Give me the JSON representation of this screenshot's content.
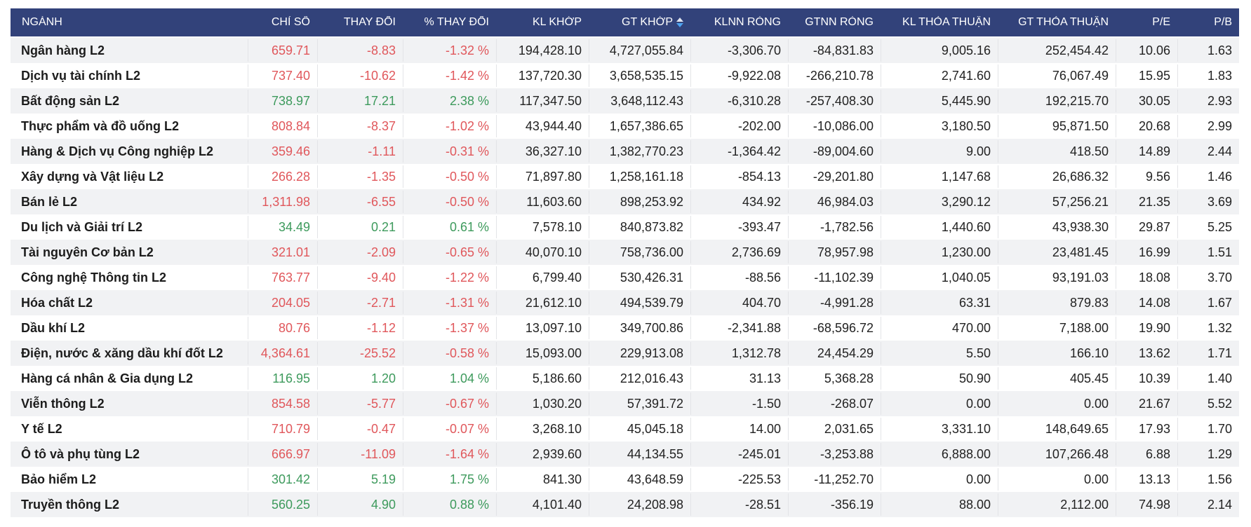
{
  "colors": {
    "header_bg": "#32427a",
    "up": "#3d9a5c",
    "down": "#e0575b",
    "alt_row": "#f1f2f4"
  },
  "headers": [
    "NGÀNH",
    "CHỈ SỐ",
    "THAY ĐỔI",
    "% THAY ĐỔI",
    "KL KHỚP",
    "GT KHỚP",
    "KLNN RÒNG",
    "GTNN RÒNG",
    "KL THỎA THUẬN",
    "GT THỎA THUẬN",
    "P/E",
    "P/B"
  ],
  "sort": {
    "column": "GT KHỚP",
    "direction": "desc",
    "icon": "sort-desc-icon"
  },
  "rows": [
    {
      "name": "Ngân hàng L2",
      "index": "659.71",
      "change": "-8.83",
      "pct": "-1.32 %",
      "dir": "down",
      "kl_khop": "194,428.10",
      "gt_khop": "4,727,055.84",
      "klnn": "-3,306.70",
      "gtnn": "-84,831.83",
      "kl_tt": "9,005.16",
      "gt_tt": "252,454.42",
      "pe": "10.06",
      "pb": "1.63"
    },
    {
      "name": "Dịch vụ tài chính L2",
      "index": "737.40",
      "change": "-10.62",
      "pct": "-1.42 %",
      "dir": "down",
      "kl_khop": "137,720.30",
      "gt_khop": "3,658,535.15",
      "klnn": "-9,922.08",
      "gtnn": "-266,210.78",
      "kl_tt": "2,741.60",
      "gt_tt": "76,067.49",
      "pe": "15.95",
      "pb": "1.83"
    },
    {
      "name": "Bất động sản L2",
      "index": "738.97",
      "change": "17.21",
      "pct": "2.38 %",
      "dir": "up",
      "kl_khop": "117,347.50",
      "gt_khop": "3,648,112.43",
      "klnn": "-6,310.28",
      "gtnn": "-257,408.30",
      "kl_tt": "5,445.90",
      "gt_tt": "192,215.70",
      "pe": "30.05",
      "pb": "2.93"
    },
    {
      "name": "Thực phẩm và đồ uống L2",
      "index": "808.84",
      "change": "-8.37",
      "pct": "-1.02 %",
      "dir": "down",
      "kl_khop": "43,944.40",
      "gt_khop": "1,657,386.65",
      "klnn": "-202.00",
      "gtnn": "-10,086.00",
      "kl_tt": "3,180.50",
      "gt_tt": "95,871.50",
      "pe": "20.68",
      "pb": "2.99"
    },
    {
      "name": "Hàng & Dịch vụ Công nghiệp L2",
      "index": "359.46",
      "change": "-1.11",
      "pct": "-0.31 %",
      "dir": "down",
      "kl_khop": "36,327.10",
      "gt_khop": "1,382,770.23",
      "klnn": "-1,364.42",
      "gtnn": "-89,004.60",
      "kl_tt": "9.00",
      "gt_tt": "418.50",
      "pe": "14.89",
      "pb": "2.44"
    },
    {
      "name": "Xây dựng và Vật liệu L2",
      "index": "266.28",
      "change": "-1.35",
      "pct": "-0.50 %",
      "dir": "down",
      "kl_khop": "71,897.80",
      "gt_khop": "1,258,161.18",
      "klnn": "-854.13",
      "gtnn": "-29,201.80",
      "kl_tt": "1,147.68",
      "gt_tt": "26,686.32",
      "pe": "9.56",
      "pb": "1.46"
    },
    {
      "name": "Bán lẻ L2",
      "index": "1,311.98",
      "change": "-6.55",
      "pct": "-0.50 %",
      "dir": "down",
      "kl_khop": "11,603.60",
      "gt_khop": "898,253.92",
      "klnn": "434.92",
      "gtnn": "46,984.03",
      "kl_tt": "3,290.12",
      "gt_tt": "57,256.21",
      "pe": "21.35",
      "pb": "3.69"
    },
    {
      "name": "Du lịch và Giải trí L2",
      "index": "34.49",
      "change": "0.21",
      "pct": "0.61 %",
      "dir": "up",
      "kl_khop": "7,578.10",
      "gt_khop": "840,873.82",
      "klnn": "-393.47",
      "gtnn": "-1,782.56",
      "kl_tt": "1,440.60",
      "gt_tt": "43,938.30",
      "pe": "29.87",
      "pb": "5.25"
    },
    {
      "name": "Tài nguyên Cơ bản L2",
      "index": "321.01",
      "change": "-2.09",
      "pct": "-0.65 %",
      "dir": "down",
      "kl_khop": "40,070.10",
      "gt_khop": "758,736.00",
      "klnn": "2,736.69",
      "gtnn": "78,957.98",
      "kl_tt": "1,230.00",
      "gt_tt": "23,481.45",
      "pe": "16.99",
      "pb": "1.51"
    },
    {
      "name": "Công nghệ Thông tin L2",
      "index": "763.77",
      "change": "-9.40",
      "pct": "-1.22 %",
      "dir": "down",
      "kl_khop": "6,799.40",
      "gt_khop": "530,426.31",
      "klnn": "-88.56",
      "gtnn": "-11,102.39",
      "kl_tt": "1,040.05",
      "gt_tt": "93,191.03",
      "pe": "18.08",
      "pb": "3.70"
    },
    {
      "name": "Hóa chất L2",
      "index": "204.05",
      "change": "-2.71",
      "pct": "-1.31 %",
      "dir": "down",
      "kl_khop": "21,612.10",
      "gt_khop": "494,539.79",
      "klnn": "404.70",
      "gtnn": "-4,991.28",
      "kl_tt": "63.31",
      "gt_tt": "879.83",
      "pe": "14.08",
      "pb": "1.67"
    },
    {
      "name": "Dầu khí L2",
      "index": "80.76",
      "change": "-1.12",
      "pct": "-1.37 %",
      "dir": "down",
      "kl_khop": "13,097.10",
      "gt_khop": "349,700.86",
      "klnn": "-2,341.88",
      "gtnn": "-68,596.72",
      "kl_tt": "470.00",
      "gt_tt": "7,188.00",
      "pe": "19.90",
      "pb": "1.32"
    },
    {
      "name": "Điện, nước & xăng dầu khí đốt L2",
      "index": "4,364.61",
      "change": "-25.52",
      "pct": "-0.58 %",
      "dir": "down",
      "kl_khop": "15,093.00",
      "gt_khop": "229,913.08",
      "klnn": "1,312.78",
      "gtnn": "24,454.29",
      "kl_tt": "5.50",
      "gt_tt": "166.10",
      "pe": "13.62",
      "pb": "1.71"
    },
    {
      "name": "Hàng cá nhân & Gia dụng L2",
      "index": "116.95",
      "change": "1.20",
      "pct": "1.04 %",
      "dir": "up",
      "kl_khop": "5,186.60",
      "gt_khop": "212,016.43",
      "klnn": "31.13",
      "gtnn": "5,368.28",
      "kl_tt": "50.90",
      "gt_tt": "405.45",
      "pe": "10.39",
      "pb": "1.40"
    },
    {
      "name": "Viễn thông L2",
      "index": "854.58",
      "change": "-5.77",
      "pct": "-0.67 %",
      "dir": "down",
      "kl_khop": "1,030.20",
      "gt_khop": "57,391.72",
      "klnn": "-1.50",
      "gtnn": "-268.07",
      "kl_tt": "0.00",
      "gt_tt": "0.00",
      "pe": "21.67",
      "pb": "5.52"
    },
    {
      "name": "Y tế L2",
      "index": "710.79",
      "change": "-0.47",
      "pct": "-0.07 %",
      "dir": "down",
      "kl_khop": "3,268.10",
      "gt_khop": "45,045.18",
      "klnn": "14.00",
      "gtnn": "2,031.65",
      "kl_tt": "3,331.10",
      "gt_tt": "148,649.65",
      "pe": "17.93",
      "pb": "1.70"
    },
    {
      "name": "Ô tô và phụ tùng L2",
      "index": "666.97",
      "change": "-11.09",
      "pct": "-1.64 %",
      "dir": "down",
      "kl_khop": "2,939.60",
      "gt_khop": "44,134.55",
      "klnn": "-245.01",
      "gtnn": "-3,253.88",
      "kl_tt": "6,888.00",
      "gt_tt": "107,266.48",
      "pe": "6.88",
      "pb": "1.29"
    },
    {
      "name": "Bảo hiểm L2",
      "index": "301.42",
      "change": "5.19",
      "pct": "1.75 %",
      "dir": "up",
      "kl_khop": "841.30",
      "gt_khop": "43,648.59",
      "klnn": "-225.53",
      "gtnn": "-11,252.70",
      "kl_tt": "0.00",
      "gt_tt": "0.00",
      "pe": "13.13",
      "pb": "1.56"
    },
    {
      "name": "Truyền thông L2",
      "index": "560.25",
      "change": "4.90",
      "pct": "0.88 %",
      "dir": "up",
      "kl_khop": "4,101.40",
      "gt_khop": "24,208.98",
      "klnn": "-28.51",
      "gtnn": "-356.19",
      "kl_tt": "88.00",
      "gt_tt": "2,112.00",
      "pe": "74.98",
      "pb": "2.14"
    }
  ]
}
